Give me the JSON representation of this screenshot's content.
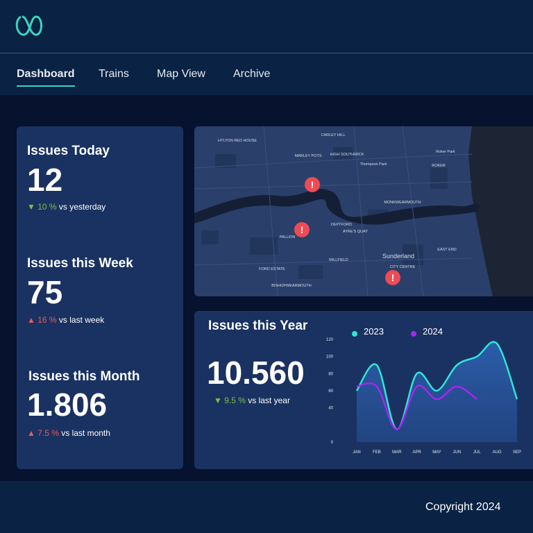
{
  "nav": [
    "Dashboard",
    "Trains",
    "Map View",
    "Archive"
  ],
  "stats": [
    {
      "title": "Issues Today",
      "value": "12",
      "change": "10 %",
      "comparison": "vs yesterday"
    },
    {
      "title": "Issues this Week",
      "value": "75",
      "change": "16 %",
      "comparison": "vs last week"
    },
    {
      "title": "Issues this Month",
      "value": "1.806",
      "change": "7.5 %",
      "comparison": "vs last month"
    }
  ],
  "map": {
    "places": [
      "HYLTON RED HOUSE",
      "CARLEY HILL",
      "MARLEY POTS",
      "HIGH SOUTHWICK",
      "Thompson Park",
      "Roker Park",
      "ROKER",
      "MONKWEARMOUTH",
      "DEPTFORD",
      "AYRE'S QUAY",
      "PALLION",
      "Sunderland",
      "CITY CENTRE",
      "EAST END",
      "MILLFIELD",
      "FORD ESTATE",
      "BISHOPWEARMOUTH"
    ]
  },
  "year": {
    "title": "Issues this Year",
    "value": "10.560",
    "change": "9.5 %",
    "comparison": "vs last year",
    "chart_data": {
      "type": "line",
      "categories": [
        "JAN",
        "FEB",
        "MAR",
        "APR",
        "MAY",
        "JUN",
        "JUL",
        "AUG",
        "SEP"
      ],
      "series": [
        {
          "name": "2023",
          "color": "#2ee6d6",
          "values": [
            60,
            90,
            15,
            80,
            60,
            90,
            100,
            115,
            50
          ]
        },
        {
          "name": "2024",
          "color": "#a526f0",
          "values": [
            65,
            65,
            15,
            65,
            50,
            65,
            50,
            null,
            null
          ]
        }
      ],
      "ylim": [
        0,
        120
      ],
      "yticks": [
        0,
        40,
        60,
        80,
        100,
        120
      ]
    }
  },
  "footer": "Copyright 2024"
}
